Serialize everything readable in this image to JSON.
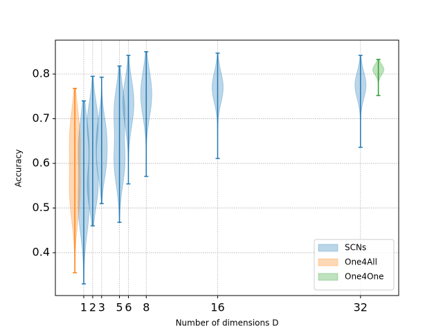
{
  "chart_data": {
    "type": "violin",
    "xlabel": "Number of dimensions D",
    "ylabel": "Accuracy",
    "xlim": [
      -2.18,
      36.28
    ],
    "ylim": [
      0.304,
      0.876
    ],
    "xticks": [
      1,
      2,
      3,
      5,
      6,
      8,
      16,
      32
    ],
    "yticks": [
      0.4,
      0.5,
      0.6,
      0.7,
      0.8
    ],
    "grid": true,
    "legend": "lower right",
    "series": [
      {
        "name": "SCNs",
        "color": "#1f77b4",
        "x": [
          1,
          2,
          3,
          5,
          6,
          8,
          16,
          32
        ],
        "min": [
          0.33,
          0.46,
          0.51,
          0.468,
          0.554,
          0.571,
          0.611,
          0.636
        ],
        "max": [
          0.74,
          0.795,
          0.793,
          0.818,
          0.842,
          0.85,
          0.847,
          0.842
        ],
        "peaks": [
          [
            0.64,
            0.5
          ],
          [
            0.69,
            0.55
          ],
          [
            0.67,
            0.6
          ],
          [
            0.72,
            0.6
          ],
          [
            0.76,
            0.71
          ],
          [
            0.78,
            0.73
          ],
          [
            0.77
          ],
          [
            0.775
          ]
        ]
      },
      {
        "name": "One4All",
        "color": "#ff7f0e",
        "x": [
          0
        ],
        "min": [
          0.355
        ],
        "max": [
          0.768
        ],
        "peaks": [
          [
            0.66,
            0.53
          ]
        ]
      },
      {
        "name": "One4One",
        "color": "#2ca02c",
        "x": [
          34
        ],
        "min": [
          0.752
        ],
        "max": [
          0.833
        ],
        "peaks": [
          [
            0.81
          ]
        ]
      }
    ]
  }
}
